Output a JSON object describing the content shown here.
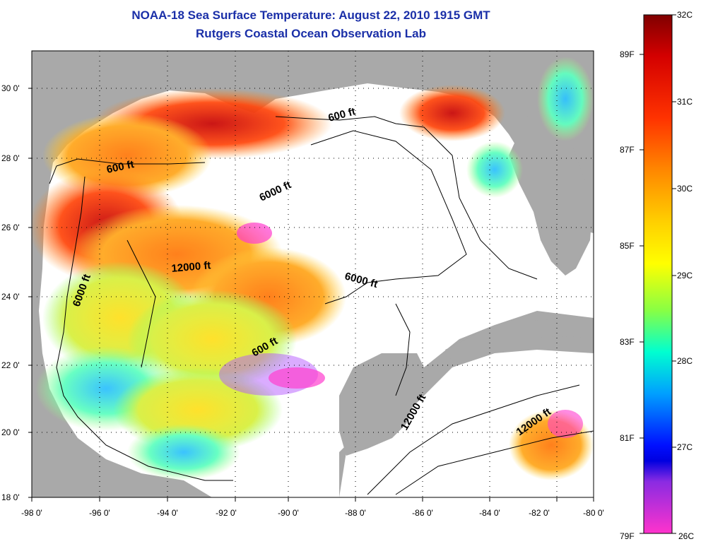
{
  "title": {
    "line1": "NOAA-18 Sea Surface Temperature:  August 22, 2010 1915 GMT",
    "line2": "Rutgers Coastal Ocean Observation Lab"
  },
  "map": {
    "lon_ticks": [
      "-98 0'",
      "-96 0'",
      "-94 0'",
      "-92 0'",
      "-90 0'",
      "-88 0'",
      "-86 0'",
      "-84 0'",
      "-82 0'",
      "-80 0'"
    ],
    "lat_ticks": [
      "30 0'",
      "28 0'",
      "26 0'",
      "24 0'",
      "22 0'",
      "20 0'",
      "18 0'"
    ],
    "contour_labels": [
      {
        "text": "600 ft",
        "lon": -95.5,
        "lat": 27.8
      },
      {
        "text": "600 ft",
        "lon": -86.7,
        "lat": 29.4
      },
      {
        "text": "6000 ft",
        "lon": -90.8,
        "lat": 27.1
      },
      {
        "text": "12000 ft",
        "lon": -93.2,
        "lat": 24.9
      },
      {
        "text": "6000 ft",
        "lon": -96.5,
        "lat": 24.0
      },
      {
        "text": "6000 ft",
        "lon": -87.4,
        "lat": 24.4
      },
      {
        "text": "600 ft",
        "lon": -90.7,
        "lat": 22.5
      },
      {
        "text": "12000 ft",
        "lon": -85.4,
        "lat": 20.6
      },
      {
        "text": "12000 ft",
        "lon": -81.7,
        "lat": 20.2
      }
    ],
    "colors": {
      "land": "#a9a9a9",
      "no_data": "#ffffff",
      "title": "#1a2fa8"
    }
  },
  "colorbar": {
    "celsius_labels": [
      "32C",
      "31C",
      "30C",
      "29C",
      "28C",
      "27C",
      "26C"
    ],
    "fahrenheit_labels": [
      "89F",
      "87F",
      "85F",
      "83F",
      "81F",
      "79F"
    ],
    "range_c": [
      26,
      32
    ]
  }
}
